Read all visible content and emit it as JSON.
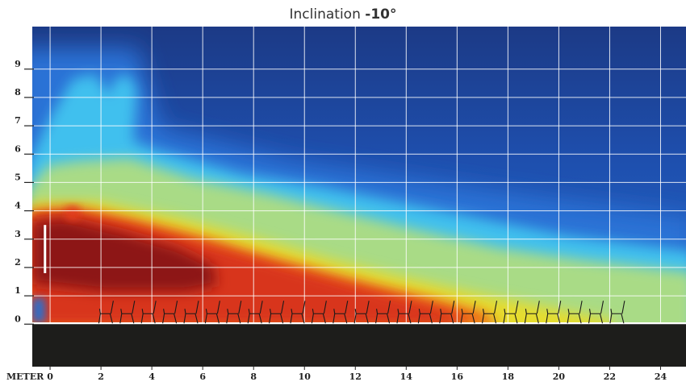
{
  "chart_data": {
    "type": "heatmap",
    "title_prefix": "Inclination ",
    "title_value": "-10°",
    "xlabel": "METER",
    "x_ticks": [
      0,
      2,
      4,
      6,
      8,
      10,
      12,
      14,
      16,
      18,
      20,
      22,
      24
    ],
    "y_ticks": [
      0,
      1,
      2,
      3,
      4,
      5,
      6,
      7,
      8,
      9
    ],
    "xlim": [
      -0.7,
      25
    ],
    "ylim": [
      -1.5,
      10.5
    ],
    "grid": true,
    "floor_level": 0,
    "chairs": {
      "from": 2.2,
      "to": 22.3,
      "count": 25
    },
    "source_marker": {
      "x": -0.2,
      "y_range": [
        1.8,
        3.5
      ]
    },
    "colormap": [
      "#1a3a8a",
      "#1f5fc0",
      "#35c8ee",
      "#b8e27a",
      "#e8dc2a",
      "#ef5a14",
      "#d8361a",
      "#8d1614"
    ]
  },
  "axis": {
    "meter_label": "METER"
  }
}
